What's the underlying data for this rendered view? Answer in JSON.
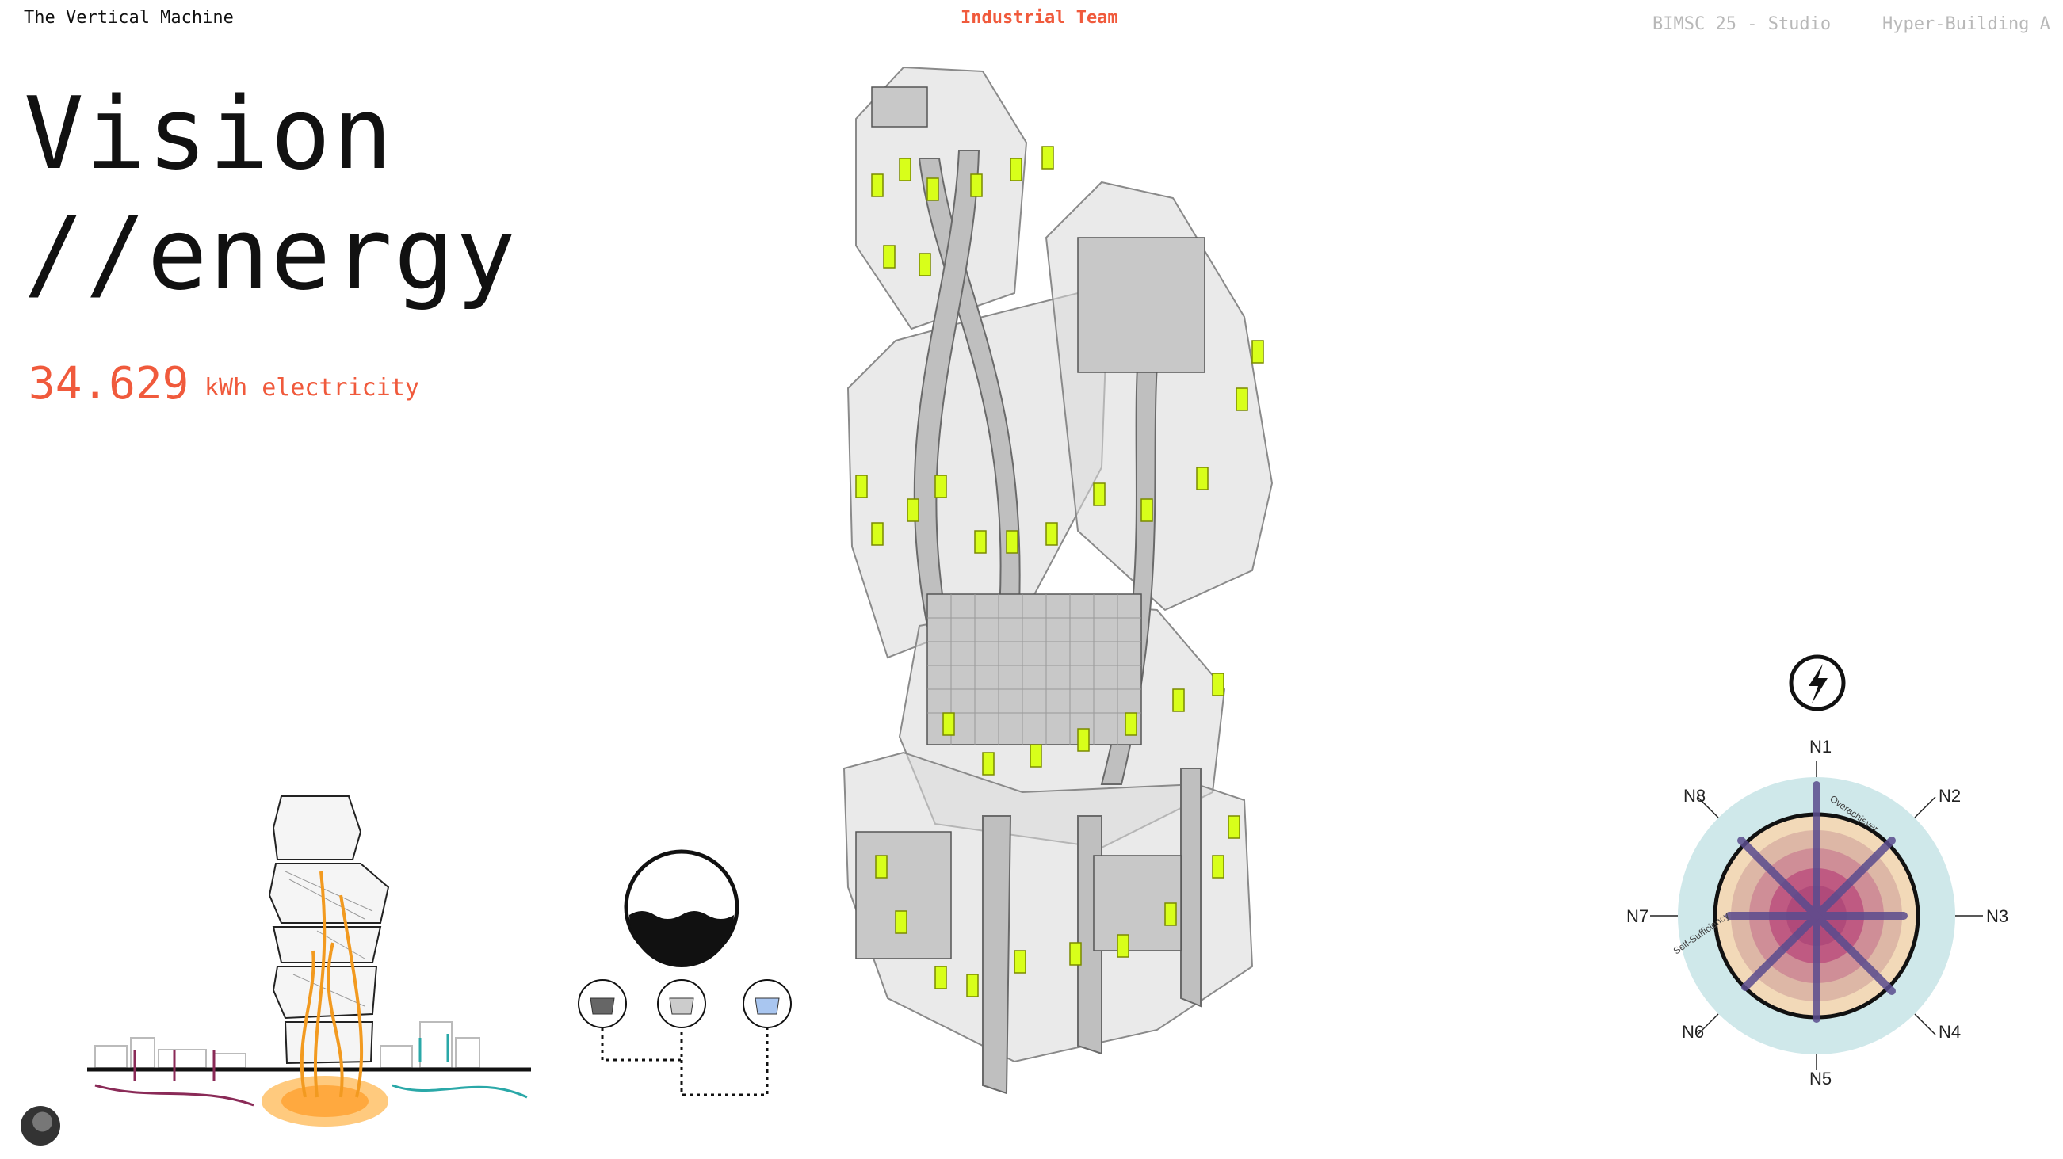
{
  "header": {
    "brand": "The Vertical Machine",
    "team": "Industrial Team",
    "course": "BIMSC 25 - Studio",
    "project": "Hyper-Building A"
  },
  "title": {
    "line1": "Vision",
    "line2": "//energy"
  },
  "metric": {
    "value": "34.629",
    "unit": "kWh electricity"
  },
  "radar": {
    "icon": "lightning-bolt-icon",
    "labels": [
      "N1",
      "N2",
      "N3",
      "N4",
      "N5",
      "N6",
      "N7",
      "N8"
    ],
    "ring_labels": {
      "outer": "Overachiever",
      "inner": "Self-Sufficiency"
    },
    "colors": {
      "outer_ring": "#cfe8ea",
      "mid_ring": "#f2d9b8",
      "inner_blend": "#b04a7a",
      "spokes": "#5a4c8e"
    }
  },
  "colors": {
    "accent": "#f05a3c",
    "muted": "#b8b8b8",
    "highlight_modules": "#d8ff1a"
  },
  "icons": {
    "water_tank": "water-tank-icon",
    "tanks": [
      "dark-water-icon",
      "grey-water-icon",
      "clean-water-icon"
    ]
  }
}
